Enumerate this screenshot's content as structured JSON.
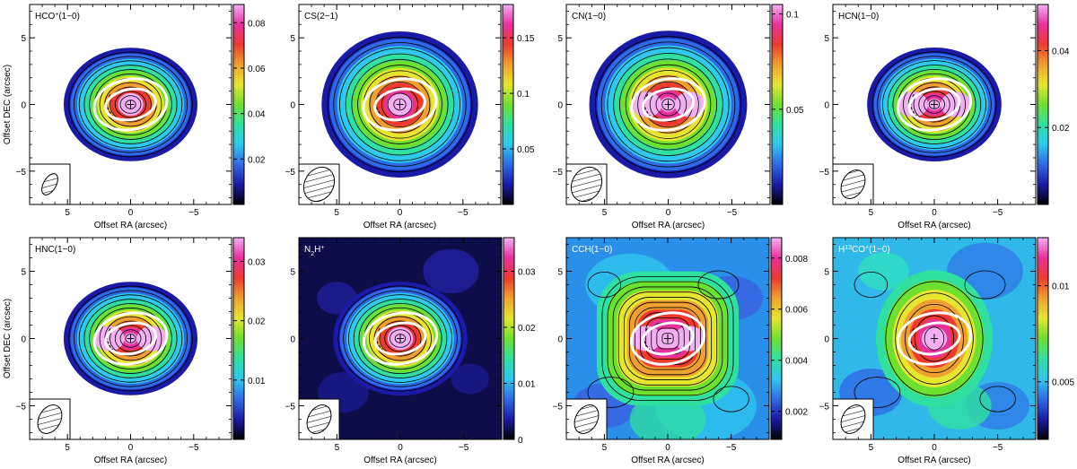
{
  "figure": {
    "xlabel": "Offset RA (arcsec)",
    "ylabel": "Offset DEC (arcsec)",
    "xticks": [
      "5",
      "0",
      "−5"
    ],
    "yticks": [
      "5",
      "0",
      "−5"
    ],
    "extent_arcsec": {
      "x": [
        8,
        -8
      ],
      "y": [
        -7.5,
        7.5
      ]
    },
    "x_reversed": true,
    "colormap": [
      "#000000",
      "#1a1aa6",
      "#2f6ae6",
      "#2fc8ee",
      "#2fe0a0",
      "#6ee02f",
      "#e6e62f",
      "#f0a02f",
      "#ee3a2f",
      "#e8309e",
      "#f2b0f2"
    ],
    "panels": [
      {
        "id": "hco",
        "label_main": "HCO",
        "label_sup": "+",
        "label_tail": "(1−0)",
        "label_color": "#000000",
        "colorbar_ticks": [
          "0.08",
          "0.06",
          "0.04",
          "0.02"
        ],
        "colorbar_values": [
          0.08,
          0.06,
          0.04,
          0.02
        ],
        "cb_range": [
          0.0,
          0.088
        ],
        "beam": "small",
        "background": "white",
        "shape": "compact",
        "peak": "single"
      },
      {
        "id": "cs",
        "label_main": "CS(2−1)",
        "label_sup": "",
        "label_tail": "",
        "label_color": "#000000",
        "colorbar_ticks": [
          "0.15",
          "0.1",
          "0.05"
        ],
        "colorbar_values": [
          0.15,
          0.1,
          0.05
        ],
        "cb_range": [
          0.0,
          0.18
        ],
        "beam": "large",
        "background": "white",
        "shape": "round",
        "peak": "single"
      },
      {
        "id": "cn",
        "label_main": "CN(1−0)",
        "label_sup": "",
        "label_tail": "",
        "label_color": "#000000",
        "colorbar_ticks": [
          "0.1",
          "0.05"
        ],
        "colorbar_values": [
          0.1,
          0.05
        ],
        "cb_range": [
          0.0,
          0.105
        ],
        "beam": "large",
        "background": "white",
        "shape": "round",
        "peak": "double"
      },
      {
        "id": "hcn",
        "label_main": "HCN(1−0)",
        "label_sup": "",
        "label_tail": "",
        "label_color": "#000000",
        "colorbar_ticks": [
          "0.04",
          "0.02"
        ],
        "colorbar_values": [
          0.04,
          0.02
        ],
        "cb_range": [
          0.0,
          0.052
        ],
        "beam": "medium",
        "background": "white",
        "shape": "compact",
        "peak": "double"
      },
      {
        "id": "hnc",
        "label_main": "HNC(1−0)",
        "label_sup": "",
        "label_tail": "",
        "label_color": "#000000",
        "colorbar_ticks": [
          "0.03",
          "0.02",
          "0.01"
        ],
        "colorbar_values": [
          0.03,
          0.02,
          0.01
        ],
        "cb_range": [
          0.0,
          0.034
        ],
        "beam": "medium",
        "background": "white",
        "shape": "compact",
        "peak": "double"
      },
      {
        "id": "n2h",
        "label_main": "N",
        "label_sub": "2",
        "label_after_sub": "H",
        "label_sup": "+",
        "label_tail": "",
        "label_color": "#ffffff",
        "colorbar_ticks": [
          "0.03",
          "0.02",
          "0.01",
          "0"
        ],
        "colorbar_values": [
          0.03,
          0.02,
          0.01,
          0.0
        ],
        "cb_range": [
          0.0,
          0.036
        ],
        "beam": "medium",
        "background": "dark",
        "shape": "compact",
        "peak": "single"
      },
      {
        "id": "cch",
        "label_main": "CCH(1−0)",
        "label_sup": "",
        "label_tail": "",
        "label_color": "#ffffff",
        "colorbar_ticks": [
          "0.008",
          "0.006",
          "0.004",
          "0.002"
        ],
        "colorbar_values": [
          0.008,
          0.006,
          0.004,
          0.002
        ],
        "cb_range": [
          0.0009,
          0.0088
        ],
        "beam": "medium",
        "background": "field",
        "shape": "boxy",
        "peak": "double"
      },
      {
        "id": "h13co",
        "label_main": "H",
        "label_pre_sup": "13",
        "label_after_pre": "CO",
        "label_sup": "+",
        "label_tail": "(1−0)",
        "label_color": "#ffffff",
        "colorbar_ticks": [
          "0.01",
          "0.005"
        ],
        "colorbar_values": [
          0.01,
          0.005
        ],
        "cb_range": [
          0.002,
          0.0125
        ],
        "beam": "medium",
        "background": "lowfield",
        "shape": "extended",
        "peak": "single"
      }
    ]
  }
}
